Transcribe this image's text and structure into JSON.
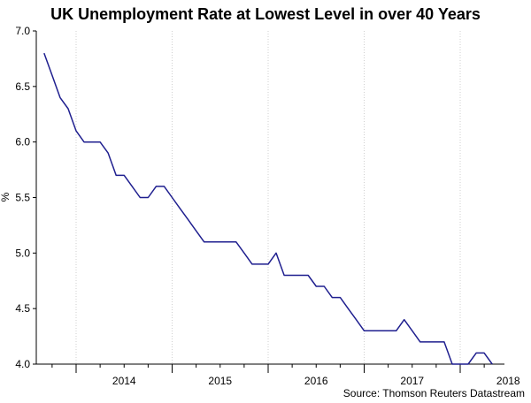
{
  "chart_data": {
    "type": "line",
    "title": "UK Unemployment Rate at Lowest Level in over 40 Years",
    "xlabel": "",
    "ylabel": "%",
    "source": "Source: Thomson Reuters Datastream",
    "x_tick_labels": [
      "2014",
      "2015",
      "2016",
      "2017",
      "2018"
    ],
    "y_tick_labels": [
      "7.0",
      "6.5",
      "6.0",
      "5.5",
      "5.0",
      "4.5",
      "4.0"
    ],
    "ylim": [
      4.0,
      7.0
    ],
    "xlim": [
      "2013-08",
      "2018-06"
    ],
    "grid": true,
    "line_color": "#1f1f8f",
    "series": [
      {
        "x": [
          "2013-09",
          "2013-10",
          "2013-11",
          "2013-12",
          "2014-01",
          "2014-02",
          "2014-03",
          "2014-04",
          "2014-05",
          "2014-06",
          "2014-07",
          "2014-08",
          "2014-09",
          "2014-10",
          "2014-11",
          "2014-12",
          "2015-01",
          "2015-02",
          "2015-03",
          "2015-04",
          "2015-05",
          "2015-06",
          "2015-07",
          "2015-08",
          "2015-09",
          "2015-10",
          "2015-11",
          "2015-12",
          "2016-01",
          "2016-02",
          "2016-03",
          "2016-04",
          "2016-05",
          "2016-06",
          "2016-07",
          "2016-08",
          "2016-09",
          "2016-10",
          "2016-11",
          "2016-12",
          "2017-01",
          "2017-02",
          "2017-03",
          "2017-04",
          "2017-05",
          "2017-06",
          "2017-07",
          "2017-08",
          "2017-09",
          "2017-10",
          "2017-11",
          "2017-12",
          "2018-01",
          "2018-02",
          "2018-03",
          "2018-04",
          "2018-05"
        ],
        "values": [
          6.8,
          6.6,
          6.4,
          6.3,
          6.1,
          6.0,
          6.0,
          6.0,
          5.9,
          5.7,
          5.7,
          5.6,
          5.5,
          5.5,
          5.6,
          5.6,
          5.5,
          5.4,
          5.3,
          5.2,
          5.1,
          5.1,
          5.1,
          5.1,
          5.1,
          5.0,
          4.9,
          4.9,
          4.9,
          5.0,
          4.8,
          4.8,
          4.8,
          4.8,
          4.7,
          4.7,
          4.6,
          4.6,
          4.5,
          4.4,
          4.3,
          4.3,
          4.3,
          4.3,
          4.3,
          4.4,
          4.3,
          4.2,
          4.2,
          4.2,
          4.2,
          4.0,
          4.0,
          4.0,
          4.1,
          4.1,
          4.0
        ]
      }
    ]
  }
}
